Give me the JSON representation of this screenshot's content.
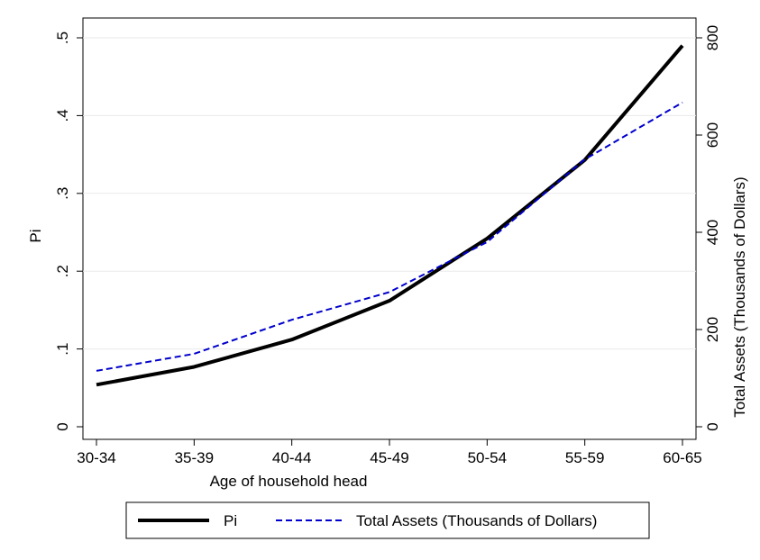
{
  "chart_data": {
    "type": "line",
    "title": "",
    "xlabel": "Age of household head",
    "categories": [
      "30-34",
      "35-39",
      "40-44",
      "45-49",
      "50-54",
      "55-59",
      "60-65"
    ],
    "y_left": {
      "label": "Pi",
      "range": [
        0,
        0.5
      ],
      "ticks": [
        0,
        0.1,
        0.2,
        0.3,
        0.4,
        0.5
      ],
      "tick_labels": [
        "0",
        ".1",
        ".2",
        ".3",
        ".4",
        ".5"
      ]
    },
    "y_right": {
      "label": "Total Assets (Thousands of Dollars)",
      "range": [
        0,
        800
      ],
      "ticks": [
        0,
        200,
        400,
        600,
        800
      ],
      "tick_labels": [
        "0",
        "200",
        "400",
        "600",
        "800"
      ]
    },
    "series": [
      {
        "name": "Pi",
        "axis": "left",
        "color": "#000000",
        "style": "solid",
        "values": [
          0.054,
          0.077,
          0.112,
          0.162,
          0.242,
          0.343,
          0.49
        ]
      },
      {
        "name": "Total Assets (Thousands of Dollars)",
        "axis": "right",
        "color": "#0000cc",
        "style": "dashed",
        "values": [
          115,
          150,
          220,
          277,
          380,
          550,
          667
        ]
      }
    ],
    "grid": true,
    "legend_position": "bottom"
  }
}
